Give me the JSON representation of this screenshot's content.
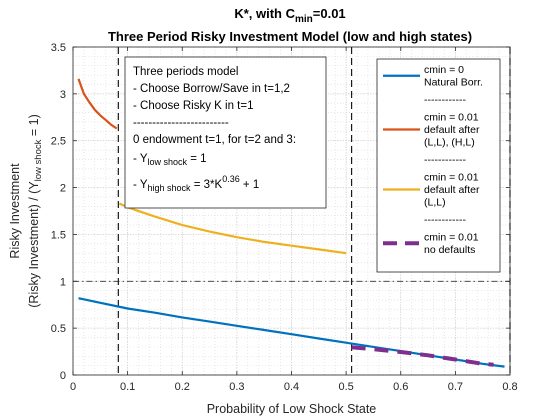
{
  "chart_data": {
    "type": "line",
    "title_prefix": "K*, with C",
    "title_sub": "min",
    "title_suffix": "=0.01",
    "subtitle": "Three Period Risky Investment Model (low and high states)",
    "xlabel": "Probability of Low Shock State",
    "ylabel_line1": "Risky Investment",
    "ylabel_prefix": "(Risky Investment) / (Y",
    "ylabel_sub": "low shock",
    "ylabel_suffix": " = 1)",
    "xlim": [
      0,
      0.8
    ],
    "ylim": [
      0,
      3.5
    ],
    "xticks": [
      "0",
      "0.1",
      "0.2",
      "0.3",
      "0.4",
      "0.5",
      "0.6",
      "0.7",
      "0.8"
    ],
    "xtick_values": [
      0,
      0.1,
      0.2,
      0.3,
      0.4,
      0.5,
      0.6,
      0.7,
      0.8
    ],
    "yticks": [
      "0",
      "0.5",
      "1",
      "1.5",
      "2",
      "2.5",
      "3",
      "3.5"
    ],
    "ytick_values": [
      0,
      0.5,
      1,
      1.5,
      2,
      2.5,
      3,
      3.5
    ],
    "grid": true,
    "minor_grid": true,
    "reference_lines": {
      "vertical_x": [
        0.083,
        0.51,
        0.8
      ],
      "horizontal_y": 1.0
    },
    "annotation": {
      "lines": [
        "Three periods model",
        "- Choose Borrow/Save in t=1,2",
        "- Choose Risky K in t=1",
        "-------------------------",
        "0 endowment t=1, for t=2 and 3:"
      ],
      "y_low": {
        "prefix": "- Y",
        "sub": "low shock",
        "suffix": " = 1"
      },
      "y_high": {
        "prefix": "- Y",
        "sub": "high shock",
        "suffix": " = 3*K",
        "sup": "0.36",
        "tail": " + 1"
      }
    },
    "legend_position": "top-right",
    "legend": [
      {
        "lines": [
          "cmin = 0",
          "Natural Borr."
        ],
        "color": "#0072BD",
        "style": "solid"
      },
      {
        "lines": [
          "------------"
        ],
        "color": "",
        "style": "none"
      },
      {
        "lines": [
          "cmin = 0.01",
          "default after",
          "(L,L), (H,L)"
        ],
        "color": "#D95319",
        "style": "solid"
      },
      {
        "lines": [
          "------------"
        ],
        "color": "",
        "style": "none"
      },
      {
        "lines": [
          "cmin = 0.01",
          "default after",
          "(L,L)"
        ],
        "color": "#EDB120",
        "style": "solid"
      },
      {
        "lines": [
          "------------"
        ],
        "color": "",
        "style": "none"
      },
      {
        "lines": [
          "cmin = 0.01",
          "no defaults"
        ],
        "color": "#7E2F8E",
        "style": "dashed"
      }
    ],
    "series": [
      {
        "color": "#0072BD",
        "style": "solid",
        "x": [
          0.01,
          0.05,
          0.1,
          0.15,
          0.2,
          0.25,
          0.3,
          0.35,
          0.4,
          0.45,
          0.5,
          0.55,
          0.6,
          0.65,
          0.7,
          0.75,
          0.79
        ],
        "y": [
          0.82,
          0.77,
          0.71,
          0.665,
          0.615,
          0.57,
          0.525,
          0.48,
          0.435,
          0.39,
          0.345,
          0.3,
          0.255,
          0.21,
          0.165,
          0.12,
          0.09
        ]
      },
      {
        "color": "#D95319",
        "style": "solid",
        "x": [
          0.01,
          0.02,
          0.03,
          0.04,
          0.05,
          0.06,
          0.07,
          0.08
        ],
        "y": [
          3.16,
          3.0,
          2.91,
          2.83,
          2.77,
          2.72,
          2.67,
          2.63
        ]
      },
      {
        "color": "#EDB120",
        "style": "solid",
        "x": [
          0.085,
          0.1,
          0.15,
          0.2,
          0.25,
          0.3,
          0.35,
          0.4,
          0.45,
          0.5
        ],
        "y": [
          1.83,
          1.79,
          1.69,
          1.6,
          1.53,
          1.47,
          1.42,
          1.38,
          1.34,
          1.3
        ]
      },
      {
        "color": "#7E2F8E",
        "style": "dashed",
        "x": [
          0.51,
          0.55,
          0.6,
          0.65,
          0.7,
          0.75,
          0.77
        ],
        "y": [
          0.297,
          0.275,
          0.245,
          0.21,
          0.165,
          0.12,
          0.11
        ]
      }
    ]
  }
}
